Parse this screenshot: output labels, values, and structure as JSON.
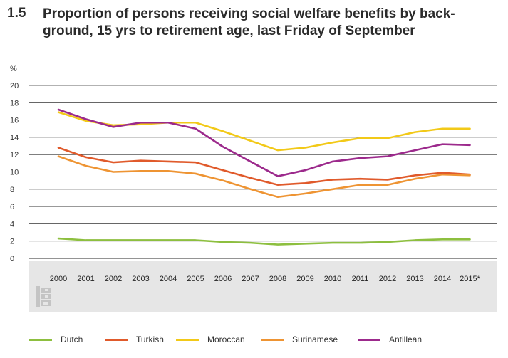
{
  "header": {
    "figure_number": "1.5",
    "title": "Proportion of persons receiving social welfare benefits by back-ground, 15 yrs to retirement age, last Friday of September"
  },
  "chart_data": {
    "type": "line",
    "title": "Proportion of persons receiving social welfare benefits by back-ground, 15 yrs to retirement age, last Friday of September",
    "ylabel": "%",
    "xlabel": "",
    "ylim": [
      0,
      20
    ],
    "yticks": [
      0,
      2,
      4,
      6,
      8,
      10,
      12,
      14,
      16,
      18,
      20
    ],
    "grid": true,
    "categories": [
      "2000",
      "2001",
      "2002",
      "2003",
      "2004",
      "2005",
      "2006",
      "2007",
      "2008",
      "2009",
      "2010",
      "2011",
      "2012",
      "2013",
      "2014",
      "2015*"
    ],
    "series": [
      {
        "name": "Dutch",
        "color": "#8dbf3f",
        "values": [
          2.3,
          2.1,
          2.1,
          2.1,
          2.1,
          2.1,
          1.9,
          1.8,
          1.6,
          1.7,
          1.8,
          1.8,
          1.9,
          2.1,
          2.2,
          2.2
        ]
      },
      {
        "name": "Turkish",
        "color": "#e05a2b",
        "values": [
          12.8,
          11.7,
          11.1,
          11.3,
          11.2,
          11.1,
          10.2,
          9.3,
          8.5,
          8.7,
          9.1,
          9.2,
          9.1,
          9.6,
          9.9,
          9.7
        ]
      },
      {
        "name": "Moroccan",
        "color": "#f2c918",
        "values": [
          16.9,
          15.9,
          15.4,
          15.5,
          15.7,
          15.7,
          14.7,
          13.6,
          12.5,
          12.8,
          13.4,
          13.9,
          13.9,
          14.6,
          15.0,
          15.0
        ]
      },
      {
        "name": "Surinamese",
        "color": "#ee9433",
        "values": [
          11.8,
          10.7,
          10.0,
          10.1,
          10.1,
          9.8,
          9.0,
          8.0,
          7.1,
          7.5,
          8.0,
          8.5,
          8.5,
          9.2,
          9.7,
          9.6
        ]
      },
      {
        "name": "Antillean",
        "color": "#9c2a8c",
        "values": [
          17.2,
          16.1,
          15.2,
          15.7,
          15.7,
          15.0,
          12.9,
          11.2,
          9.5,
          10.2,
          11.2,
          11.6,
          11.8,
          12.5,
          13.2,
          13.1
        ]
      }
    ]
  },
  "logo": {
    "name": "cbs",
    "text": "cbs"
  }
}
